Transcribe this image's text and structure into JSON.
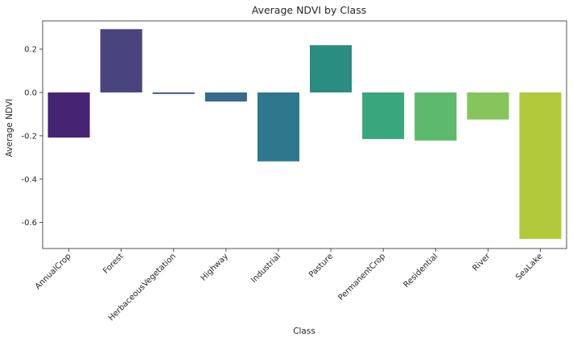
{
  "chart_data": {
    "type": "bar",
    "title": "Average NDVI by Class",
    "xlabel": "Class",
    "ylabel": "Average NDVI",
    "categories": [
      "AnnualCrop",
      "Forest",
      "HerbaceousVegetation",
      "Highway",
      "Industrial",
      "Pasture",
      "PermanentCrop",
      "Residential",
      "River",
      "SeaLake"
    ],
    "values": [
      -0.208,
      0.292,
      -0.007,
      -0.042,
      -0.318,
      0.218,
      -0.215,
      -0.222,
      -0.125,
      -0.676
    ],
    "colors": [
      "#472374",
      "#4a447e",
      "#3d5286",
      "#366b8c",
      "#2e788d",
      "#2b8c82",
      "#3aa67c",
      "#5db96c",
      "#86c55c",
      "#b1c83b"
    ],
    "yticks": [
      -0.6,
      -0.4,
      -0.2,
      0.0,
      0.2
    ],
    "ylim": [
      -0.72,
      0.33
    ],
    "grid": false,
    "legend": "none"
  }
}
